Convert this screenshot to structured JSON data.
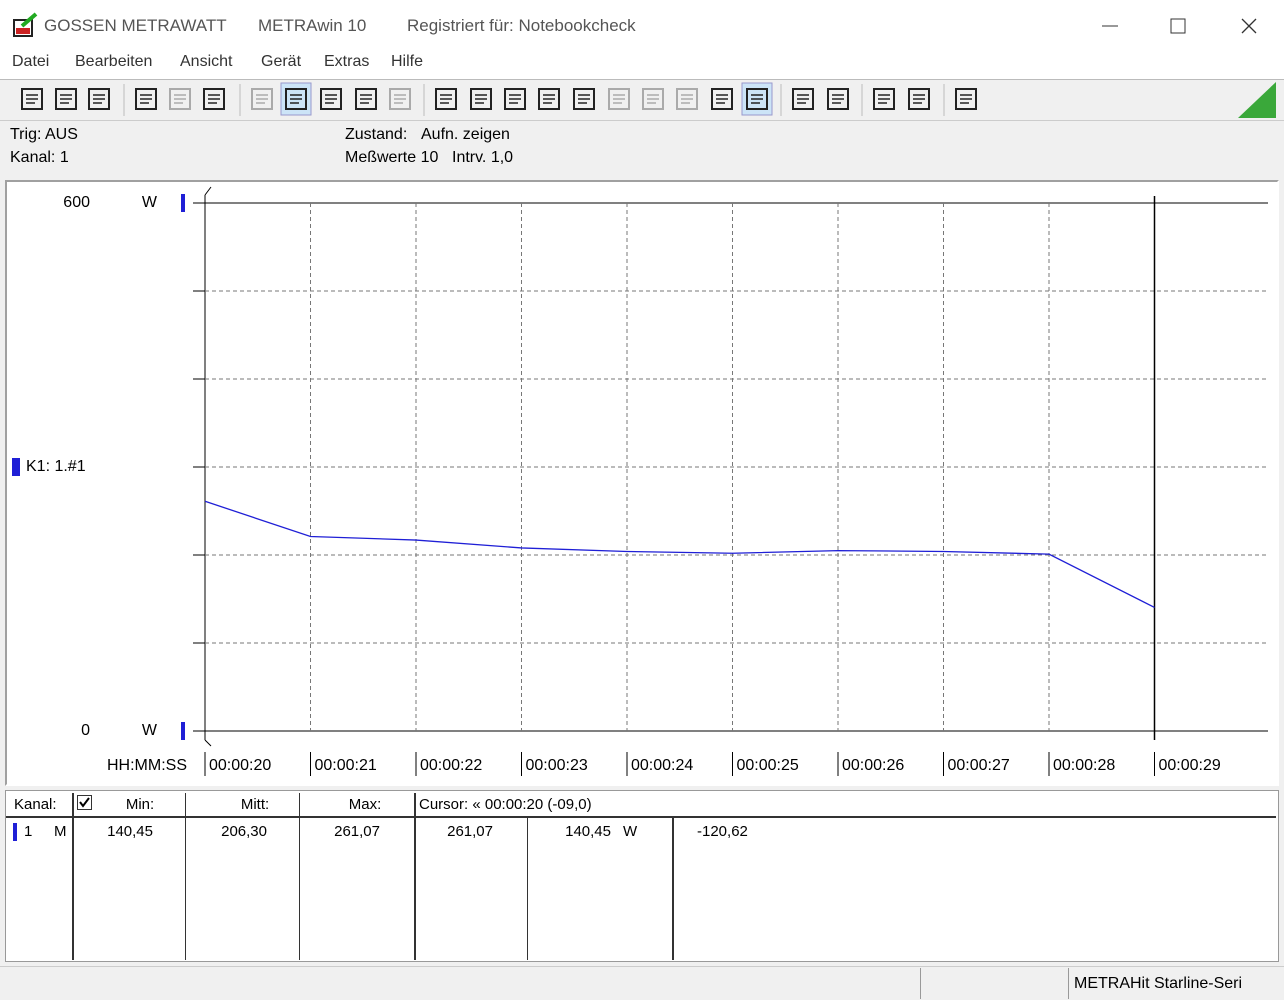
{
  "window": {
    "app": "GOSSEN METRAWATT",
    "program": "METRAwin 10",
    "registration": "Registriert für: Notebookcheck"
  },
  "menu": [
    "Datei",
    "Bearbeiten",
    "Ansicht",
    "Gerät",
    "Extras",
    "Hilfe"
  ],
  "info": {
    "trigger": "Trig: AUS",
    "channel": "Kanal: 1",
    "state_label": "Zustand:",
    "state": "Aufn. zeigen",
    "count": "Meßwerte 10",
    "interval": "Intrv. 1,0"
  },
  "chart_data": {
    "type": "line",
    "series_label": "K1: 1.#1",
    "xlabel": "HH:MM:SS",
    "yunit": "W",
    "categories": [
      "00:00:20",
      "00:00:21",
      "00:00:22",
      "00:00:23",
      "00:00:24",
      "00:00:25",
      "00:00:26",
      "00:00:27",
      "00:00:28",
      "00:00:29"
    ],
    "values": [
      261.07,
      221,
      217,
      208,
      204,
      202,
      205,
      204,
      201,
      140.45
    ],
    "color": "#1f1fd6",
    "ylim": [
      0,
      600
    ],
    "yticks": [
      0,
      600
    ],
    "ygrid": [
      100,
      200,
      300,
      400,
      500
    ],
    "grid": true
  },
  "table": {
    "header": [
      "Kanal:",
      "Min:",
      "Mitt:",
      "Max:",
      "Cursor: « 00:00:20 (-09,0)"
    ],
    "rows": [
      [
        "1",
        "M",
        "140,45",
        "206,30",
        "261,07",
        "261,07",
        "140,45",
        "W",
        "-120,62"
      ]
    ]
  },
  "status": "METRAHit Starline-Seri"
}
